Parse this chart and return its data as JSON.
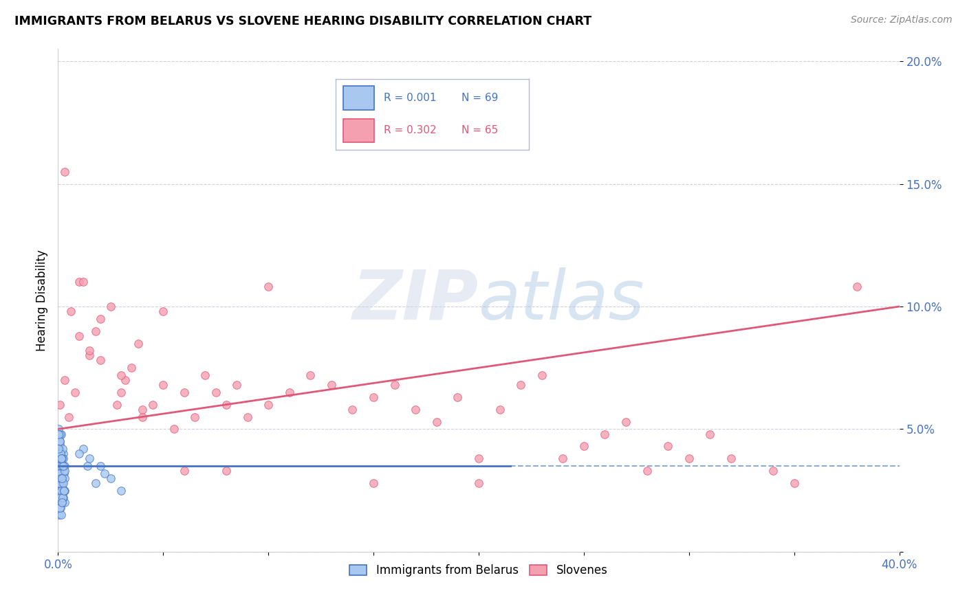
{
  "title": "IMMIGRANTS FROM BELARUS VS SLOVENE HEARING DISABILITY CORRELATION CHART",
  "source": "Source: ZipAtlas.com",
  "ylabel": "Hearing Disability",
  "x_min": 0.0,
  "x_max": 0.4,
  "y_min": 0.0,
  "y_max": 0.205,
  "x_tick_positions": [
    0.0,
    0.05,
    0.1,
    0.15,
    0.2,
    0.25,
    0.3,
    0.35,
    0.4
  ],
  "x_tick_labels": [
    "0.0%",
    "",
    "",
    "",
    "",
    "",
    "",
    "",
    "40.0%"
  ],
  "y_tick_positions": [
    0.0,
    0.05,
    0.1,
    0.15,
    0.2
  ],
  "y_tick_labels": [
    "",
    "5.0%",
    "10.0%",
    "15.0%",
    "20.0%"
  ],
  "legend_label1": "Immigrants from Belarus",
  "legend_label2": "Slovenes",
  "legend_r1": "R = 0.001",
  "legend_n1": "N = 69",
  "legend_r2": "R = 0.302",
  "legend_n2": "N = 65",
  "color_belarus": "#a8c8f0",
  "color_slovene": "#f4a0b0",
  "color_line_belarus": "#4472c4",
  "color_line_slovene": "#e05878",
  "color_axis_labels": "#4472c4",
  "watermark_zip": "ZIP",
  "watermark_atlas": "atlas",
  "belarus_line_y": 0.035,
  "slovene_line_start_y": 0.05,
  "slovene_line_end_y": 0.1,
  "belarus_x": [
    0.0005,
    0.001,
    0.0015,
    0.002,
    0.0025,
    0.003,
    0.0008,
    0.0012,
    0.0018,
    0.0022,
    0.0006,
    0.0014,
    0.002,
    0.0016,
    0.001,
    0.0004,
    0.0028,
    0.0032,
    0.0009,
    0.0011,
    0.0007,
    0.0013,
    0.0017,
    0.0021,
    0.0026,
    0.0031,
    0.0003,
    0.0019,
    0.0024,
    0.0029,
    0.0002,
    0.0015,
    0.001,
    0.0005,
    0.002,
    0.0025,
    0.003,
    0.0008,
    0.0012,
    0.0022,
    0.0006,
    0.0016,
    0.0018,
    0.0004,
    0.0028,
    0.0011,
    0.0009,
    0.0007,
    0.0013,
    0.0017,
    0.0021,
    0.0026,
    0.0031,
    0.0003,
    0.0019,
    0.0024,
    0.0029,
    0.0002,
    0.002,
    0.0015,
    0.02,
    0.015,
    0.018,
    0.012,
    0.025,
    0.03,
    0.022,
    0.01,
    0.014
  ],
  "belarus_y": [
    0.03,
    0.025,
    0.032,
    0.028,
    0.035,
    0.02,
    0.045,
    0.04,
    0.038,
    0.022,
    0.015,
    0.048,
    0.03,
    0.036,
    0.042,
    0.028,
    0.033,
    0.025,
    0.038,
    0.02,
    0.044,
    0.018,
    0.03,
    0.026,
    0.04,
    0.035,
    0.05,
    0.028,
    0.022,
    0.032,
    0.04,
    0.025,
    0.035,
    0.045,
    0.02,
    0.038,
    0.03,
    0.048,
    0.022,
    0.042,
    0.028,
    0.015,
    0.035,
    0.032,
    0.025,
    0.04,
    0.018,
    0.045,
    0.03,
    0.038,
    0.022,
    0.028,
    0.033,
    0.048,
    0.02,
    0.035,
    0.025,
    0.042,
    0.03,
    0.038,
    0.035,
    0.038,
    0.028,
    0.042,
    0.03,
    0.025,
    0.032,
    0.04,
    0.035
  ],
  "slovene_x": [
    0.001,
    0.003,
    0.005,
    0.008,
    0.01,
    0.012,
    0.015,
    0.018,
    0.02,
    0.025,
    0.028,
    0.03,
    0.032,
    0.035,
    0.038,
    0.04,
    0.045,
    0.05,
    0.055,
    0.06,
    0.065,
    0.07,
    0.075,
    0.08,
    0.085,
    0.09,
    0.1,
    0.11,
    0.12,
    0.13,
    0.14,
    0.15,
    0.16,
    0.17,
    0.18,
    0.19,
    0.2,
    0.21,
    0.22,
    0.23,
    0.24,
    0.25,
    0.26,
    0.27,
    0.28,
    0.29,
    0.3,
    0.31,
    0.32,
    0.34,
    0.003,
    0.006,
    0.01,
    0.015,
    0.02,
    0.03,
    0.04,
    0.05,
    0.06,
    0.08,
    0.1,
    0.15,
    0.2,
    0.35,
    0.38
  ],
  "slovene_y": [
    0.06,
    0.07,
    0.055,
    0.065,
    0.11,
    0.11,
    0.08,
    0.09,
    0.095,
    0.1,
    0.06,
    0.065,
    0.07,
    0.075,
    0.085,
    0.055,
    0.06,
    0.068,
    0.05,
    0.065,
    0.055,
    0.072,
    0.065,
    0.06,
    0.068,
    0.055,
    0.06,
    0.065,
    0.072,
    0.068,
    0.058,
    0.063,
    0.068,
    0.058,
    0.053,
    0.063,
    0.038,
    0.058,
    0.068,
    0.072,
    0.038,
    0.043,
    0.048,
    0.053,
    0.033,
    0.043,
    0.038,
    0.048,
    0.038,
    0.033,
    0.155,
    0.098,
    0.088,
    0.082,
    0.078,
    0.072,
    0.058,
    0.098,
    0.033,
    0.033,
    0.108,
    0.028,
    0.028,
    0.028,
    0.108
  ]
}
